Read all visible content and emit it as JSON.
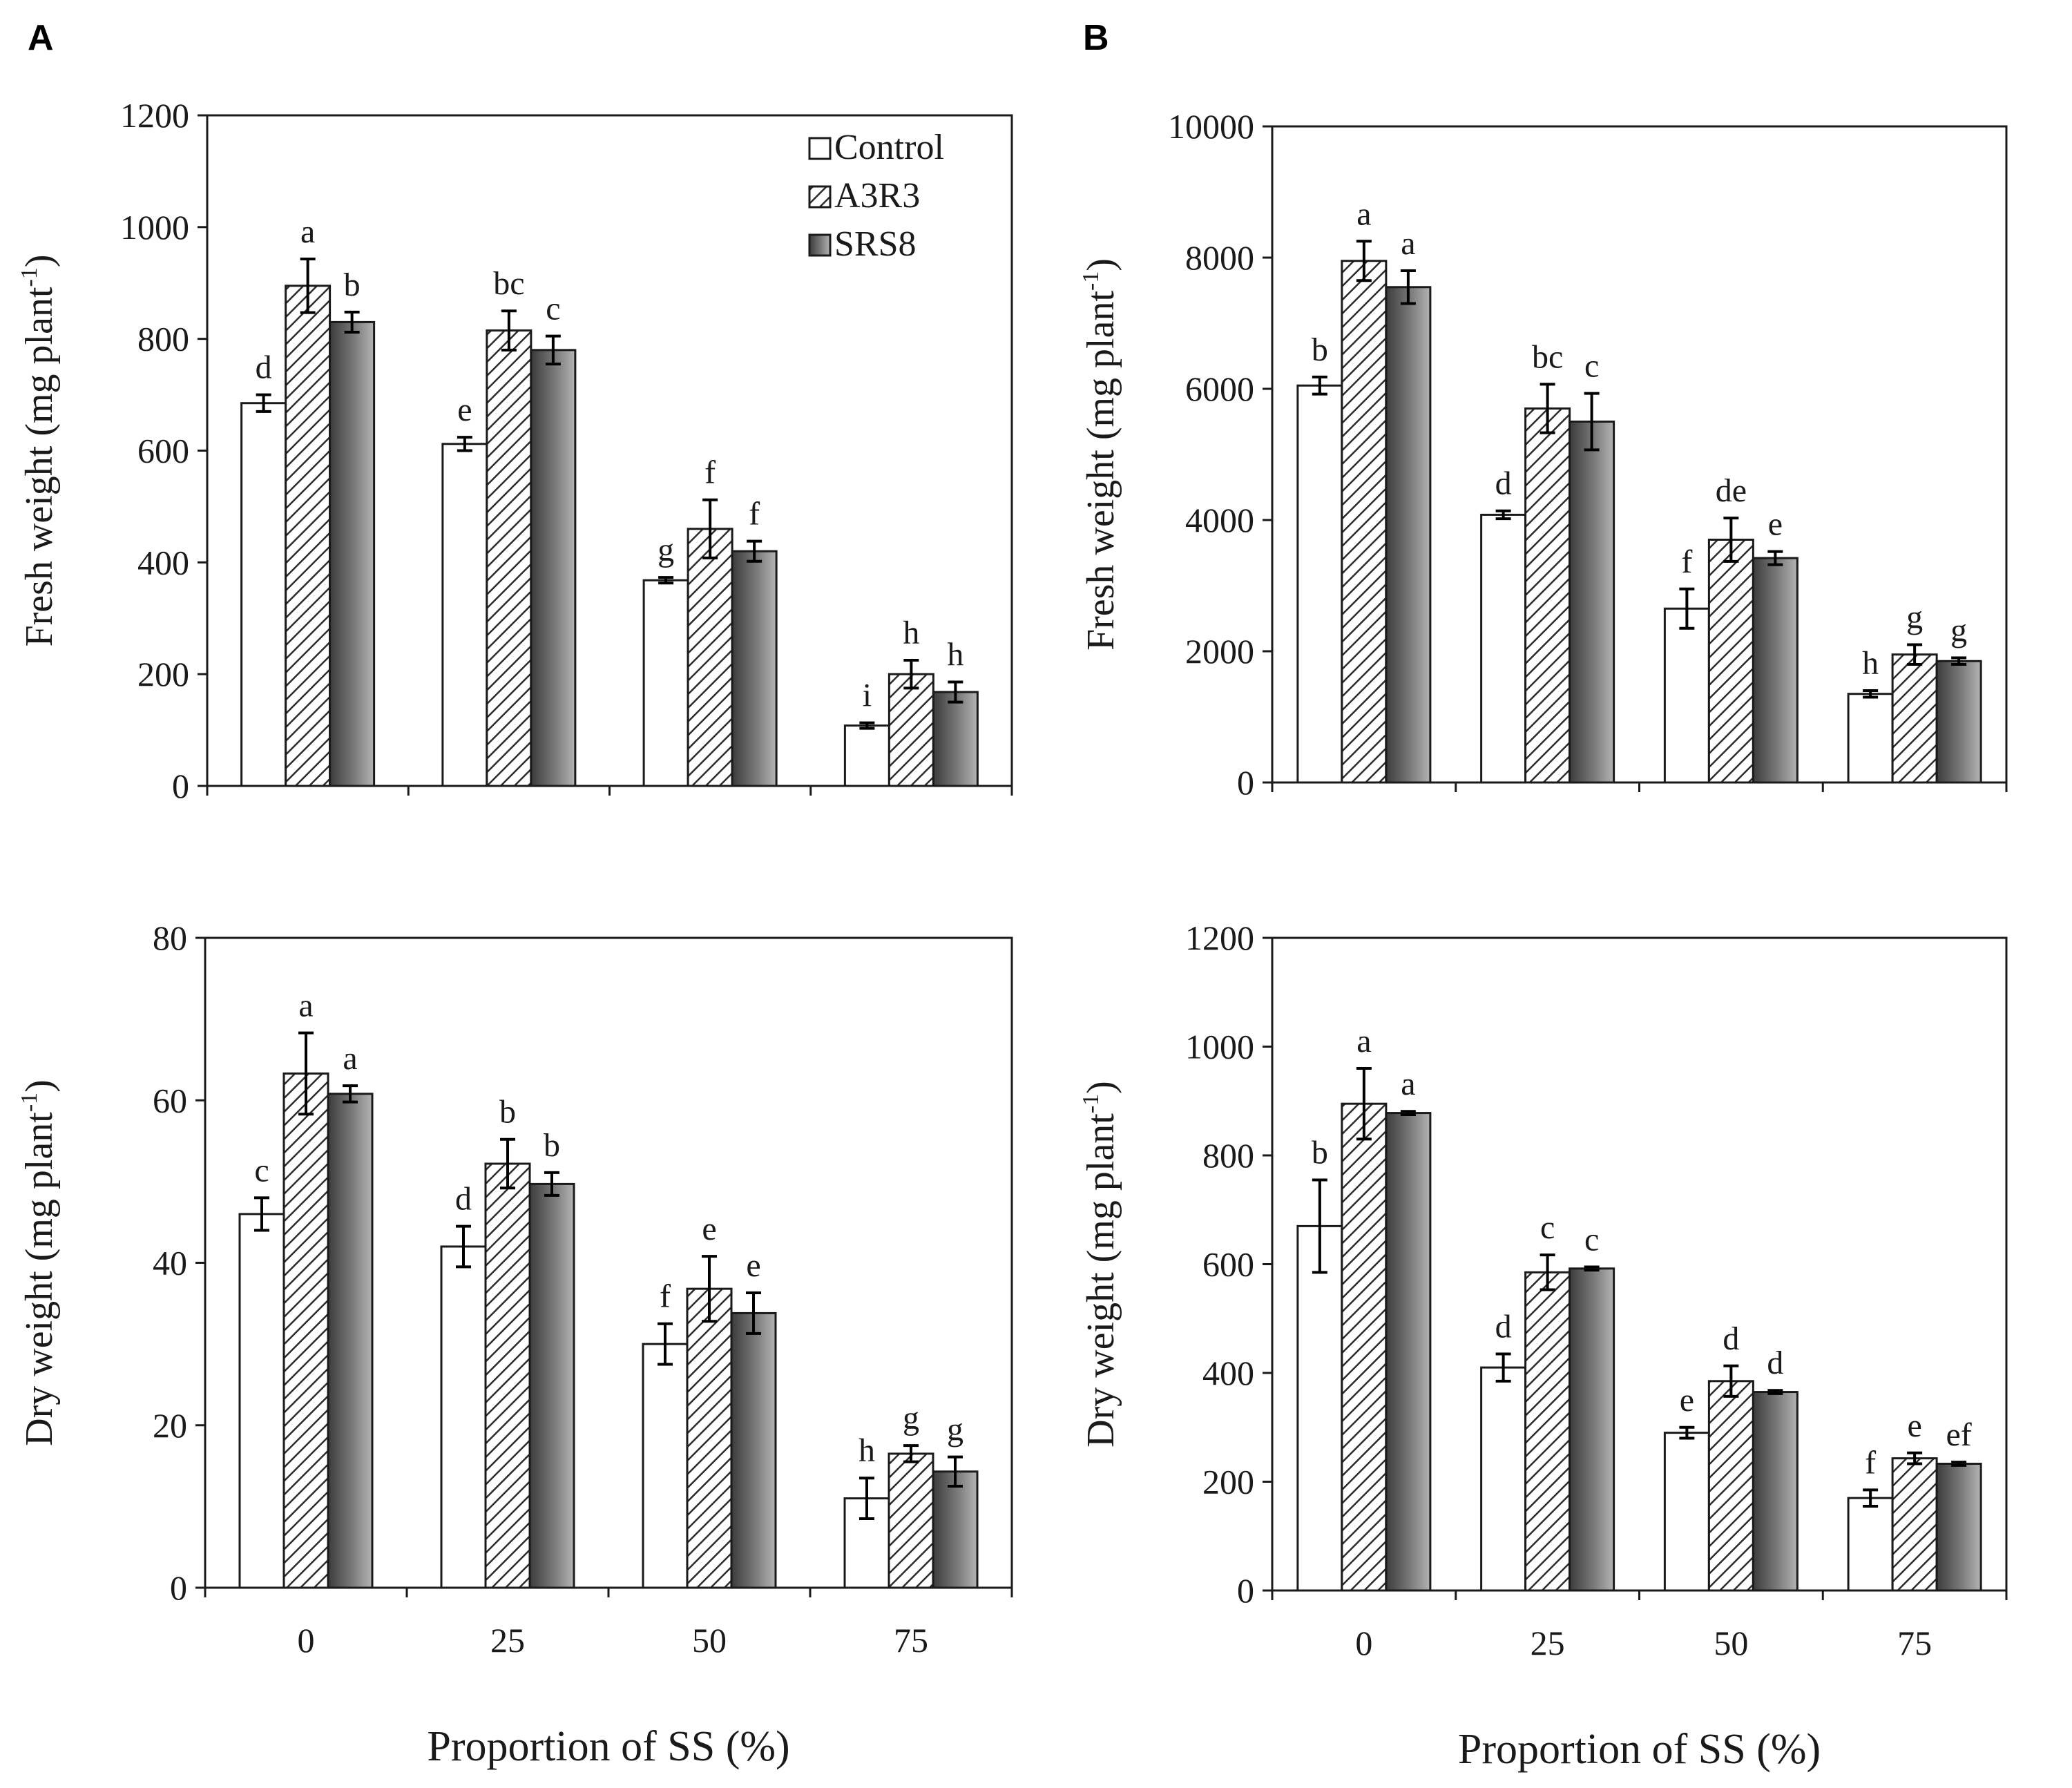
{
  "figure": {
    "panel_labels": [
      "A",
      "B"
    ],
    "x_categories": [
      "0",
      "25",
      "50",
      "75"
    ],
    "x_axis_label": "Proportion of SS (%)",
    "legend": [
      {
        "name": "Control",
        "pattern": "white"
      },
      {
        "name": "A3R3",
        "pattern": "hatched"
      },
      {
        "name": "SRS8",
        "pattern": "gradient"
      }
    ]
  },
  "colors": {
    "axis": "#1a1a1a",
    "control_fill": "#ffffff",
    "hatch_line": "#2b2b2b",
    "srs8_dark": "#3c3c3c",
    "srs8_light": "#a8a8a8"
  },
  "chart_data": [
    {
      "id": "A-fresh",
      "panel": "A",
      "type": "bar",
      "ylabel_main": "Fresh weight (mg plant",
      "ylabel_sup": "-1",
      "ylabel_tail": ")",
      "xlabel": "",
      "ylim": [
        0,
        1200
      ],
      "yticks": [
        0,
        200,
        400,
        600,
        800,
        1000,
        1200
      ],
      "categories": [
        "0",
        "25",
        "50",
        "75"
      ],
      "series": [
        {
          "name": "Control",
          "values": [
            685,
            612,
            368,
            108
          ],
          "errors": [
            15,
            12,
            5,
            5
          ],
          "letters": [
            "d",
            "e",
            "g",
            "i"
          ]
        },
        {
          "name": "A3R3",
          "values": [
            895,
            815,
            460,
            200
          ],
          "errors": [
            48,
            35,
            52,
            25
          ],
          "letters": [
            "a",
            "bc",
            "f",
            "h"
          ]
        },
        {
          "name": "SRS8",
          "values": [
            830,
            780,
            420,
            168
          ],
          "errors": [
            18,
            25,
            18,
            18
          ],
          "letters": [
            "b",
            "c",
            "f",
            "h"
          ]
        }
      ]
    },
    {
      "id": "B-fresh",
      "panel": "B",
      "type": "bar",
      "ylabel_main": "Fresh weight (mg plant",
      "ylabel_sup": "-1",
      "ylabel_tail": ")",
      "xlabel": "",
      "ylim": [
        0,
        10000
      ],
      "yticks": [
        0,
        2000,
        4000,
        6000,
        8000,
        10000
      ],
      "categories": [
        "0",
        "25",
        "50",
        "75"
      ],
      "series": [
        {
          "name": "Control",
          "values": [
            6050,
            4080,
            2650,
            1350
          ],
          "errors": [
            130,
            60,
            300,
            50
          ],
          "letters": [
            "b",
            "d",
            "f",
            "h"
          ]
        },
        {
          "name": "A3R3",
          "values": [
            7950,
            5700,
            3700,
            1950
          ],
          "errors": [
            300,
            370,
            330,
            150
          ],
          "letters": [
            "a",
            "bc",
            "de",
            "g"
          ]
        },
        {
          "name": "SRS8",
          "values": [
            7550,
            5500,
            3420,
            1850
          ],
          "errors": [
            250,
            430,
            100,
            50
          ],
          "letters": [
            "a",
            "c",
            "e",
            "g"
          ]
        }
      ]
    },
    {
      "id": "A-dry",
      "panel": "A",
      "type": "bar",
      "ylabel_main": "Dry weight (mg plant",
      "ylabel_sup": "-1",
      "ylabel_tail": ")",
      "xlabel": "Proportion of SS (%)",
      "ylim": [
        0,
        80
      ],
      "yticks": [
        0,
        20,
        40,
        60,
        80
      ],
      "categories": [
        "0",
        "25",
        "50",
        "75"
      ],
      "series": [
        {
          "name": "Control",
          "values": [
            46,
            42,
            30,
            11
          ],
          "errors": [
            2,
            2.5,
            2.5,
            2.5
          ],
          "letters": [
            "c",
            "d",
            "f",
            "h"
          ]
        },
        {
          "name": "A3R3",
          "values": [
            63.3,
            52.2,
            36.8,
            16.5
          ],
          "errors": [
            5,
            3,
            4,
            1
          ],
          "letters": [
            "a",
            "b",
            "e",
            "g"
          ]
        },
        {
          "name": "SRS8",
          "values": [
            60.8,
            49.7,
            33.8,
            14.3
          ],
          "errors": [
            1,
            1.4,
            2.5,
            1.8
          ],
          "letters": [
            "a",
            "b",
            "e",
            "g"
          ]
        }
      ]
    },
    {
      "id": "B-dry",
      "panel": "B",
      "type": "bar",
      "ylabel_main": "Dry weight (mg plant",
      "ylabel_sup": "-1",
      "ylabel_tail": ")",
      "xlabel": "Proportion of SS (%)",
      "ylim": [
        0,
        1200
      ],
      "yticks": [
        0,
        200,
        400,
        600,
        800,
        1000,
        1200
      ],
      "categories": [
        "0",
        "25",
        "50",
        "75"
      ],
      "series": [
        {
          "name": "Control",
          "values": [
            670,
            410,
            290,
            170
          ],
          "errors": [
            85,
            25,
            10,
            15
          ],
          "letters": [
            "b",
            "d",
            "e",
            "f"
          ]
        },
        {
          "name": "A3R3",
          "values": [
            895,
            585,
            385,
            243
          ],
          "errors": [
            65,
            32,
            28,
            10
          ],
          "letters": [
            "a",
            "c",
            "d",
            "e"
          ]
        },
        {
          "name": "SRS8",
          "values": [
            878,
            592,
            365,
            233
          ],
          "errors": [
            3,
            3,
            3,
            3
          ],
          "letters": [
            "a",
            "c",
            "d",
            "ef"
          ]
        }
      ]
    }
  ]
}
